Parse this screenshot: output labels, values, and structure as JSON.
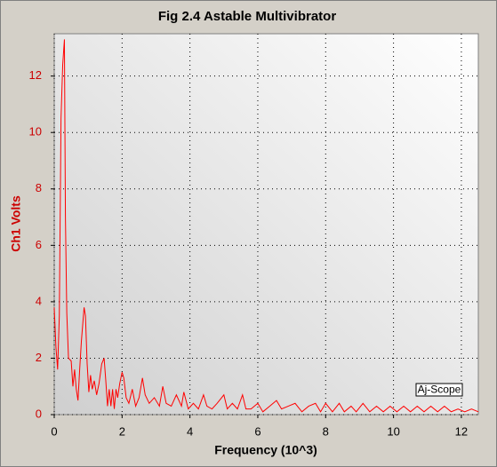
{
  "chart_data": {
    "type": "line",
    "title": "Fig 2.4 Astable Multivibrator",
    "x_label": "Frequency (10^3)",
    "y_label": "Ch1 Volts",
    "annotation": "Aj-Scope",
    "color": "#ff0000",
    "grid": true,
    "xlim": [
      0,
      12.5
    ],
    "ylim": [
      0,
      13.5
    ],
    "xticks": [
      0,
      2,
      4,
      6,
      8,
      10,
      12
    ],
    "yticks": [
      0,
      2,
      4,
      6,
      8,
      10,
      12
    ],
    "x": [
      0,
      0.05,
      0.1,
      0.15,
      0.2,
      0.25,
      0.3,
      0.33,
      0.37,
      0.42,
      0.5,
      0.55,
      0.6,
      0.65,
      0.7,
      0.75,
      0.8,
      0.88,
      0.92,
      0.97,
      1.02,
      1.07,
      1.12,
      1.18,
      1.25,
      1.32,
      1.4,
      1.47,
      1.52,
      1.57,
      1.62,
      1.67,
      1.72,
      1.77,
      1.82,
      1.87,
      1.93,
      2.0,
      2.05,
      2.12,
      2.2,
      2.3,
      2.4,
      2.5,
      2.6,
      2.68,
      2.8,
      2.95,
      3.1,
      3.2,
      3.3,
      3.45,
      3.6,
      3.75,
      3.82,
      3.95,
      4.1,
      4.25,
      4.4,
      4.5,
      4.65,
      4.8,
      5.0,
      5.1,
      5.25,
      5.4,
      5.55,
      5.65,
      5.8,
      6.0,
      6.15,
      6.35,
      6.55,
      6.7,
      6.9,
      7.1,
      7.3,
      7.5,
      7.7,
      7.85,
      8.0,
      8.2,
      8.4,
      8.55,
      8.75,
      8.9,
      9.1,
      9.3,
      9.5,
      9.7,
      9.9,
      10.1,
      10.3,
      10.5,
      10.7,
      10.9,
      11.1,
      11.3,
      11.5,
      11.7,
      11.9,
      12.1,
      12.3,
      12.5
    ],
    "values": [
      3.8,
      2.4,
      1.6,
      3.5,
      10.5,
      12.4,
      13.3,
      7,
      3.6,
      2.0,
      1.9,
      1.0,
      1.6,
      0.9,
      0.5,
      1.6,
      2.6,
      3.8,
      3.5,
      1.8,
      0.8,
      1.4,
      0.9,
      1.2,
      0.7,
      1.1,
      1.8,
      2.0,
      1.2,
      0.3,
      0.9,
      0.3,
      0.9,
      0.2,
      0.9,
      0.6,
      1.1,
      1.5,
      1.3,
      0.6,
      0.4,
      0.9,
      0.3,
      0.6,
      1.3,
      0.7,
      0.4,
      0.6,
      0.3,
      1.0,
      0.4,
      0.3,
      0.7,
      0.3,
      0.8,
      0.2,
      0.4,
      0.2,
      0.7,
      0.3,
      0.2,
      0.4,
      0.7,
      0.2,
      0.4,
      0.2,
      0.7,
      0.2,
      0.2,
      0.4,
      0.1,
      0.3,
      0.5,
      0.2,
      0.3,
      0.4,
      0.1,
      0.3,
      0.4,
      0.1,
      0.4,
      0.1,
      0.4,
      0.1,
      0.3,
      0.1,
      0.4,
      0.1,
      0.3,
      0.1,
      0.3,
      0.1,
      0.3,
      0.1,
      0.3,
      0.1,
      0.3,
      0.1,
      0.3,
      0.1,
      0.2,
      0.1,
      0.2,
      0.1
    ]
  }
}
